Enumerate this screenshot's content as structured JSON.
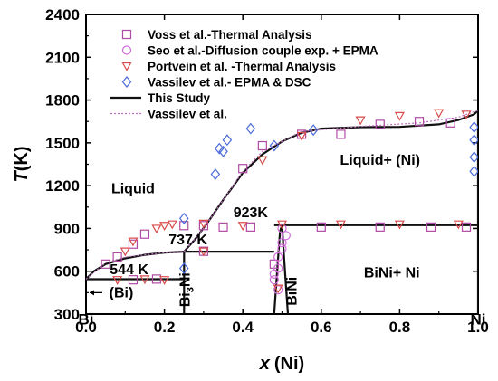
{
  "chart_data": {
    "type": "scatter",
    "xlabel": "x (Ni)",
    "xlabel_var": "x",
    "xlabel_unit": "(Ni)",
    "ylabel": "T(K)",
    "ylabel_var": "T",
    "ylabel_unit": "(K)",
    "xlim": [
      0.0,
      1.0
    ],
    "ylim": [
      300,
      2400
    ],
    "xticks": [
      0.0,
      0.2,
      0.4,
      0.6,
      0.8,
      1.0
    ],
    "xtick_labels": [
      "0.0",
      "0.2",
      "0.4",
      "0.6",
      "0.8",
      "1.0"
    ],
    "yticks": [
      300,
      600,
      900,
      1200,
      1500,
      1800,
      2100,
      2400
    ],
    "ytick_labels": [
      "300",
      "600",
      "900",
      "1200",
      "1500",
      "1800",
      "2100",
      "2400"
    ],
    "legend_position": "top-left",
    "series": [
      {
        "name": "Voss et al.-Thermal Analysis",
        "marker": "square",
        "color": "#b04aa3",
        "points": [
          [
            0.05,
            650
          ],
          [
            0.08,
            700
          ],
          [
            0.12,
            790
          ],
          [
            0.15,
            860
          ],
          [
            0.25,
            920
          ],
          [
            0.3,
            920
          ],
          [
            0.35,
            910
          ],
          [
            0.4,
            1320
          ],
          [
            0.45,
            1480
          ],
          [
            0.55,
            1560
          ],
          [
            0.65,
            1560
          ],
          [
            0.75,
            1630
          ],
          [
            0.85,
            1650
          ],
          [
            0.93,
            1640
          ],
          [
            0.12,
            540
          ],
          [
            0.18,
            545
          ],
          [
            0.3,
            740
          ],
          [
            0.42,
            910
          ],
          [
            0.6,
            910
          ],
          [
            0.75,
            910
          ],
          [
            0.88,
            910
          ],
          [
            0.97,
            910
          ],
          [
            0.48,
            650
          ]
        ]
      },
      {
        "name": "Seo et al.-Diffusion couple exp. + EPMA",
        "marker": "circle",
        "color": "#d06ad8",
        "points": [
          [
            0.48,
            540
          ],
          [
            0.49,
            620
          ],
          [
            0.49,
            700
          ],
          [
            0.5,
            760
          ],
          [
            0.5,
            800
          ],
          [
            0.51,
            850
          ],
          [
            0.5,
            900
          ],
          [
            0.48,
            580
          ],
          [
            0.49,
            470
          ]
        ]
      },
      {
        "name": "Portvein et al. -Thermal Analysis",
        "marker": "triangle-down",
        "color": "#d94a4a",
        "points": [
          [
            0.1,
            740
          ],
          [
            0.12,
            810
          ],
          [
            0.18,
            900
          ],
          [
            0.2,
            920
          ],
          [
            0.22,
            930
          ],
          [
            0.3,
            935
          ],
          [
            0.4,
            920
          ],
          [
            0.45,
            1380
          ],
          [
            0.55,
            1550
          ],
          [
            0.7,
            1660
          ],
          [
            0.8,
            1690
          ],
          [
            0.9,
            1710
          ],
          [
            0.97,
            1700
          ],
          [
            0.08,
            540
          ],
          [
            0.15,
            545
          ],
          [
            0.2,
            540
          ],
          [
            0.3,
            740
          ],
          [
            0.5,
            930
          ],
          [
            0.65,
            930
          ],
          [
            0.8,
            930
          ],
          [
            0.95,
            930
          ],
          [
            0.49,
            480
          ]
        ]
      },
      {
        "name": "Vassilev et al.- EPMA & DSC",
        "marker": "diamond",
        "color": "#4a6ad9",
        "points": [
          [
            0.25,
            970
          ],
          [
            0.33,
            1280
          ],
          [
            0.34,
            1460
          ],
          [
            0.35,
            1440
          ],
          [
            0.36,
            1520
          ],
          [
            0.42,
            1600
          ],
          [
            0.48,
            1480
          ],
          [
            0.58,
            1590
          ],
          [
            0.25,
            620
          ],
          [
            0.99,
            1520
          ],
          [
            0.99,
            1400
          ],
          [
            0.99,
            1300
          ],
          [
            0.99,
            1610
          ]
        ]
      },
      {
        "name": "This Study",
        "line": "solid",
        "color": "#111111",
        "segments": [
          [
            [
              0.0,
              544
            ],
            [
              0.02,
              600
            ],
            [
              0.05,
              650
            ],
            [
              0.1,
              690
            ],
            [
              0.15,
              715
            ],
            [
              0.2,
              730
            ],
            [
              0.25,
              737
            ],
            [
              0.28,
              830
            ],
            [
              0.31,
              940
            ],
            [
              0.35,
              1100
            ],
            [
              0.4,
              1290
            ],
            [
              0.45,
              1420
            ],
            [
              0.5,
              1510
            ],
            [
              0.55,
              1570
            ],
            [
              0.6,
              1600
            ],
            [
              0.7,
              1610
            ],
            [
              0.8,
              1612
            ],
            [
              0.9,
              1630
            ],
            [
              0.95,
              1660
            ],
            [
              0.99,
              1700
            ],
            [
              1.0,
              1728
            ]
          ],
          [
            [
              0.0,
              544
            ],
            [
              0.25,
              544
            ]
          ],
          [
            [
              0.25,
              300
            ],
            [
              0.25,
              737
            ]
          ],
          [
            [
              0.25,
              737
            ],
            [
              0.48,
              737
            ]
          ],
          [
            [
              0.48,
              923
            ],
            [
              1.0,
              923
            ]
          ],
          [
            [
              0.48,
              300
            ],
            [
              0.49,
              700
            ],
            [
              0.495,
              880
            ],
            [
              0.5,
              923
            ]
          ],
          [
            [
              0.5,
              923
            ],
            [
              0.505,
              700
            ],
            [
              0.51,
              500
            ],
            [
              0.515,
              300
            ]
          ],
          [
            [
              1.0,
              300
            ],
            [
              1.0,
              1728
            ]
          ]
        ]
      },
      {
        "name": "Vassilev et al.",
        "line": "dotted",
        "color": "#c070c0",
        "segments": [
          [
            [
              0.0,
              544
            ],
            [
              0.05,
              660
            ],
            [
              0.1,
              700
            ],
            [
              0.2,
              730
            ],
            [
              0.25,
              737
            ],
            [
              0.3,
              900
            ],
            [
              0.35,
              1100
            ],
            [
              0.4,
              1300
            ],
            [
              0.45,
              1440
            ],
            [
              0.55,
              1580
            ],
            [
              0.7,
              1615
            ],
            [
              0.85,
              1640
            ],
            [
              0.95,
              1680
            ],
            [
              1.0,
              1728
            ]
          ]
        ]
      }
    ],
    "annotations": [
      {
        "text": "Liquid",
        "x": 0.12,
        "y": 1180
      },
      {
        "text": "Liquid+ (Ni)",
        "x": 0.75,
        "y": 1380
      },
      {
        "text": "923K",
        "x": 0.42,
        "y": 1010
      },
      {
        "text": "737 K",
        "x": 0.26,
        "y": 820
      },
      {
        "text": "544 K",
        "x": 0.11,
        "y": 610
      },
      {
        "text": "(Bi)",
        "x": 0.09,
        "y": 450
      },
      {
        "text": "BiNi+ Ni",
        "x": 0.78,
        "y": 590
      },
      {
        "text_main": "Bi",
        "text_sub": "3",
        "text_tail": "Ni",
        "x": 0.265,
        "y": 470,
        "rotate": -90
      },
      {
        "text": "BiNi",
        "x": 0.525,
        "y": 460,
        "rotate": -90
      },
      {
        "text": "Bi",
        "x": 0.0,
        "y": 260
      },
      {
        "text": "Ni",
        "x": 1.0,
        "y": 260
      }
    ]
  }
}
